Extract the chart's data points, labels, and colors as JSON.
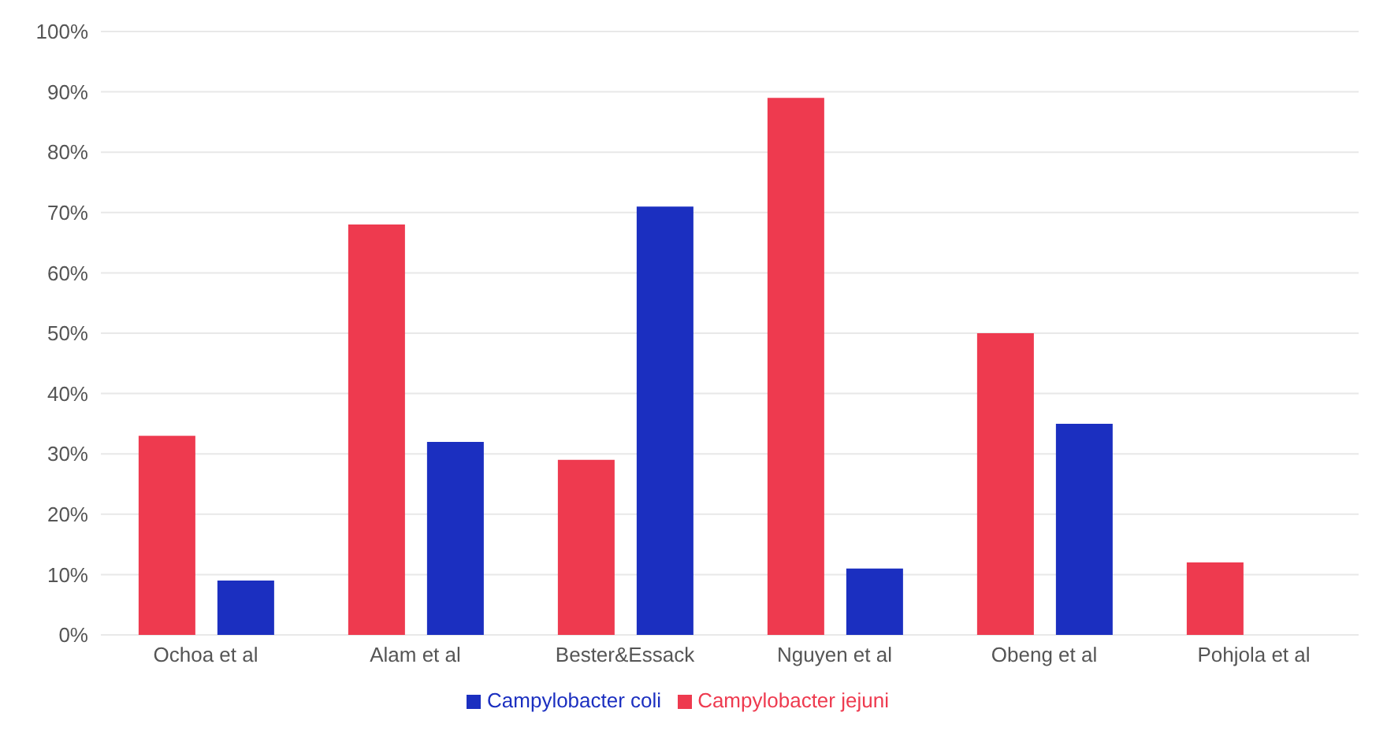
{
  "chart_data": {
    "type": "bar",
    "categories": [
      "Ochoa et al",
      "Alam et al",
      "Bester&Essack",
      "Nguyen et al",
      "Obeng et al",
      "Pohjola et al"
    ],
    "series": [
      {
        "name": "Campylobacter jejuni",
        "color": "#ee3a4f",
        "values": [
          33,
          68,
          29,
          89,
          50,
          12
        ]
      },
      {
        "name": "Campylobacter coli",
        "color": "#1b2fc0",
        "values": [
          9,
          32,
          71,
          11,
          35,
          null
        ]
      }
    ],
    "ylim": [
      0,
      100
    ],
    "yticks": [
      {
        "value": 0,
        "label": "0%"
      },
      {
        "value": 10,
        "label": "10%"
      },
      {
        "value": 20,
        "label": "20%"
      },
      {
        "value": 30,
        "label": "30%"
      },
      {
        "value": 40,
        "label": "40%"
      },
      {
        "value": 50,
        "label": "50%"
      },
      {
        "value": 60,
        "label": "60%"
      },
      {
        "value": 70,
        "label": "70%"
      },
      {
        "value": 80,
        "label": "80%"
      },
      {
        "value": 90,
        "label": "90%"
      },
      {
        "value": 100,
        "label": "100%"
      }
    ],
    "grid": "y",
    "legend": "bottom"
  }
}
